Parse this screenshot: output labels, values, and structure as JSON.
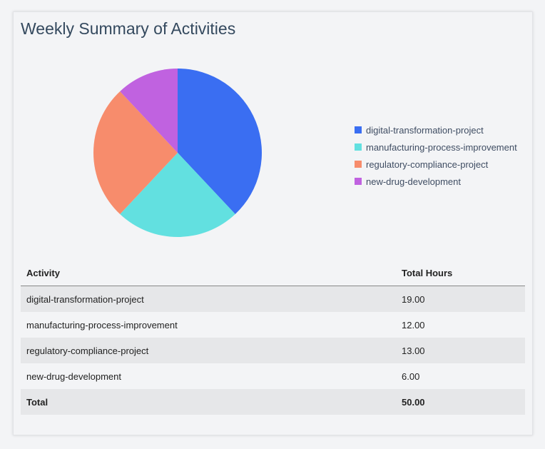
{
  "title": "Weekly Summary of Activities",
  "chart_data": {
    "type": "pie",
    "categories": [
      "digital-transformation-project",
      "manufacturing-process-improvement",
      "regulatory-compliance-project",
      "new-drug-development"
    ],
    "values": [
      19,
      12,
      13,
      6
    ],
    "colors": [
      "#3a6ef2",
      "#62e0e0",
      "#f78c6c",
      "#c062e0"
    ],
    "legend": "right"
  },
  "table": {
    "headers": [
      "Activity",
      "Total Hours"
    ],
    "rows": [
      [
        "digital-transformation-project",
        "19.00"
      ],
      [
        "manufacturing-process-improvement",
        "12.00"
      ],
      [
        "regulatory-compliance-project",
        "13.00"
      ],
      [
        "new-drug-development",
        "6.00"
      ]
    ],
    "total": [
      "Total",
      "50.00"
    ]
  }
}
